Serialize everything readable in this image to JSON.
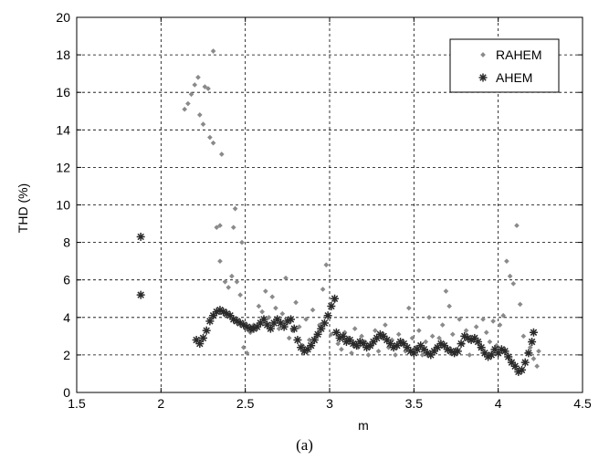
{
  "caption": "(a)",
  "chart_data": {
    "type": "scatter",
    "xlabel": "m",
    "ylabel": "THD (%)",
    "xlim": [
      1.5,
      4.5
    ],
    "ylim": [
      0,
      20
    ],
    "xticks": [
      1.5,
      2,
      2.5,
      3,
      3.5,
      4,
      4.5
    ],
    "xtick_labels": [
      "1.5",
      "2",
      "2.5",
      "3",
      "3.5",
      "4",
      "4.5"
    ],
    "yticks": [
      0,
      2,
      4,
      6,
      8,
      10,
      12,
      14,
      16,
      18,
      20
    ],
    "ytick_labels": [
      "0",
      "2",
      "4",
      "6",
      "8",
      "10",
      "12",
      "14",
      "16",
      "18",
      "20"
    ],
    "grid": true,
    "legend": "top-right",
    "series": [
      {
        "name": "RAHEM",
        "marker": "dot",
        "color": "#8a8a8a",
        "points": [
          [
            2.14,
            15.1
          ],
          [
            2.16,
            15.4
          ],
          [
            2.18,
            15.9
          ],
          [
            2.2,
            16.4
          ],
          [
            2.22,
            16.8
          ],
          [
            2.23,
            14.8
          ],
          [
            2.25,
            14.3
          ],
          [
            2.26,
            16.3
          ],
          [
            2.28,
            16.2
          ],
          [
            2.29,
            13.6
          ],
          [
            2.31,
            13.3
          ],
          [
            2.31,
            18.2
          ],
          [
            2.33,
            8.8
          ],
          [
            2.35,
            8.9
          ],
          [
            2.35,
            7.0
          ],
          [
            2.36,
            12.7
          ],
          [
            2.38,
            5.9
          ],
          [
            2.4,
            5.6
          ],
          [
            2.42,
            6.2
          ],
          [
            2.43,
            8.8
          ],
          [
            2.44,
            9.8
          ],
          [
            2.45,
            5.9
          ],
          [
            2.47,
            5.2
          ],
          [
            2.48,
            8.0
          ],
          [
            2.49,
            2.4
          ],
          [
            2.51,
            2.1
          ],
          [
            2.53,
            3.2
          ],
          [
            2.55,
            3.6
          ],
          [
            2.58,
            4.6
          ],
          [
            2.6,
            4.3
          ],
          [
            2.62,
            5.4
          ],
          [
            2.64,
            4.0
          ],
          [
            2.66,
            5.1
          ],
          [
            2.68,
            4.5
          ],
          [
            2.7,
            3.4
          ],
          [
            2.72,
            4.2
          ],
          [
            2.74,
            6.1
          ],
          [
            2.76,
            2.9
          ],
          [
            2.78,
            3.3
          ],
          [
            2.8,
            4.8
          ],
          [
            2.82,
            3.5
          ],
          [
            2.84,
            2.5
          ],
          [
            2.86,
            3.9
          ],
          [
            2.88,
            2.8
          ],
          [
            2.9,
            4.4
          ],
          [
            2.92,
            3.0
          ],
          [
            2.94,
            3.6
          ],
          [
            2.96,
            5.5
          ],
          [
            2.98,
            6.8
          ],
          [
            2.99,
            4.1
          ],
          [
            3.01,
            3.1
          ],
          [
            3.03,
            4.9
          ],
          [
            3.05,
            2.6
          ],
          [
            3.07,
            2.3
          ],
          [
            3.09,
            3.2
          ],
          [
            3.11,
            2.9
          ],
          [
            3.13,
            2.1
          ],
          [
            3.15,
            3.4
          ],
          [
            3.17,
            2.4
          ],
          [
            3.19,
            3.0
          ],
          [
            3.21,
            2.7
          ],
          [
            3.23,
            2.0
          ],
          [
            3.25,
            2.5
          ],
          [
            3.27,
            3.3
          ],
          [
            3.29,
            2.2
          ],
          [
            3.31,
            2.9
          ],
          [
            3.33,
            3.6
          ],
          [
            3.35,
            2.4
          ],
          [
            3.37,
            2.8
          ],
          [
            3.39,
            2.0
          ],
          [
            3.41,
            3.1
          ],
          [
            3.43,
            2.6
          ],
          [
            3.45,
            2.2
          ],
          [
            3.47,
            4.5
          ],
          [
            3.49,
            2.9
          ],
          [
            3.51,
            2.4
          ],
          [
            3.53,
            3.3
          ],
          [
            3.55,
            2.0
          ],
          [
            3.57,
            2.7
          ],
          [
            3.59,
            4.0
          ],
          [
            3.61,
            3.0
          ],
          [
            3.63,
            2.4
          ],
          [
            3.65,
            2.9
          ],
          [
            3.67,
            3.6
          ],
          [
            3.69,
            5.4
          ],
          [
            3.71,
            4.6
          ],
          [
            3.73,
            3.1
          ],
          [
            3.75,
            2.3
          ],
          [
            3.77,
            3.9
          ],
          [
            3.79,
            2.6
          ],
          [
            3.81,
            3.3
          ],
          [
            3.83,
            2.0
          ],
          [
            3.85,
            2.8
          ],
          [
            3.87,
            3.5
          ],
          [
            3.89,
            2.4
          ],
          [
            3.91,
            3.9
          ],
          [
            3.93,
            3.2
          ],
          [
            3.95,
            2.7
          ],
          [
            3.97,
            3.8
          ],
          [
            3.99,
            2.5
          ],
          [
            4.01,
            3.6
          ],
          [
            4.03,
            4.1
          ],
          [
            4.05,
            7.0
          ],
          [
            4.07,
            6.2
          ],
          [
            4.09,
            5.8
          ],
          [
            4.11,
            8.9
          ],
          [
            4.13,
            4.7
          ],
          [
            4.15,
            3.0
          ],
          [
            4.17,
            2.1
          ],
          [
            4.19,
            2.4
          ],
          [
            4.21,
            1.8
          ],
          [
            4.23,
            1.4
          ],
          [
            4.24,
            2.2
          ]
        ]
      },
      {
        "name": "AHEM",
        "marker": "star",
        "color": "#2a2a2a",
        "points": [
          [
            1.88,
            8.3
          ],
          [
            1.88,
            5.2
          ],
          [
            2.21,
            2.8
          ],
          [
            2.23,
            2.6
          ],
          [
            2.25,
            2.9
          ],
          [
            2.27,
            3.3
          ],
          [
            2.29,
            3.8
          ],
          [
            2.31,
            4.1
          ],
          [
            2.33,
            4.3
          ],
          [
            2.35,
            4.4
          ],
          [
            2.37,
            4.3
          ],
          [
            2.39,
            4.2
          ],
          [
            2.41,
            4.1
          ],
          [
            2.43,
            3.9
          ],
          [
            2.45,
            3.8
          ],
          [
            2.47,
            3.7
          ],
          [
            2.49,
            3.6
          ],
          [
            2.51,
            3.5
          ],
          [
            2.53,
            3.4
          ],
          [
            2.55,
            3.4
          ],
          [
            2.57,
            3.5
          ],
          [
            2.59,
            3.7
          ],
          [
            2.61,
            3.9
          ],
          [
            2.63,
            3.6
          ],
          [
            2.65,
            3.4
          ],
          [
            2.67,
            3.7
          ],
          [
            2.69,
            3.9
          ],
          [
            2.71,
            3.7
          ],
          [
            2.73,
            3.5
          ],
          [
            2.75,
            3.8
          ],
          [
            2.77,
            3.9
          ],
          [
            2.79,
            3.4
          ],
          [
            2.81,
            2.8
          ],
          [
            2.83,
            2.4
          ],
          [
            2.85,
            2.2
          ],
          [
            2.87,
            2.3
          ],
          [
            2.89,
            2.5
          ],
          [
            2.91,
            2.8
          ],
          [
            2.93,
            3.1
          ],
          [
            2.95,
            3.4
          ],
          [
            2.97,
            3.7
          ],
          [
            2.99,
            4.1
          ],
          [
            3.01,
            4.6
          ],
          [
            3.03,
            5.0
          ],
          [
            3.04,
            3.2
          ],
          [
            3.06,
            2.9
          ],
          [
            3.08,
            3.0
          ],
          [
            3.1,
            2.7
          ],
          [
            3.12,
            2.8
          ],
          [
            3.14,
            2.6
          ],
          [
            3.16,
            2.5
          ],
          [
            3.18,
            2.7
          ],
          [
            3.2,
            2.6
          ],
          [
            3.22,
            2.4
          ],
          [
            3.24,
            2.5
          ],
          [
            3.26,
            2.7
          ],
          [
            3.28,
            2.9
          ],
          [
            3.3,
            3.1
          ],
          [
            3.32,
            3.0
          ],
          [
            3.34,
            2.8
          ],
          [
            3.36,
            2.6
          ],
          [
            3.38,
            2.4
          ],
          [
            3.4,
            2.5
          ],
          [
            3.42,
            2.7
          ],
          [
            3.44,
            2.6
          ],
          [
            3.46,
            2.4
          ],
          [
            3.48,
            2.2
          ],
          [
            3.5,
            2.1
          ],
          [
            3.52,
            2.3
          ],
          [
            3.54,
            2.5
          ],
          [
            3.56,
            2.3
          ],
          [
            3.58,
            2.1
          ],
          [
            3.6,
            2.0
          ],
          [
            3.62,
            2.2
          ],
          [
            3.64,
            2.4
          ],
          [
            3.66,
            2.6
          ],
          [
            3.68,
            2.5
          ],
          [
            3.7,
            2.3
          ],
          [
            3.72,
            2.2
          ],
          [
            3.74,
            2.1
          ],
          [
            3.76,
            2.2
          ],
          [
            3.78,
            2.6
          ],
          [
            3.8,
            3.0
          ],
          [
            3.82,
            2.9
          ],
          [
            3.84,
            2.8
          ],
          [
            3.86,
            2.9
          ],
          [
            3.88,
            2.7
          ],
          [
            3.9,
            2.4
          ],
          [
            3.92,
            2.1
          ],
          [
            3.94,
            1.9
          ],
          [
            3.96,
            2.0
          ],
          [
            3.98,
            2.3
          ],
          [
            4.0,
            2.1
          ],
          [
            4.02,
            2.3
          ],
          [
            4.04,
            2.2
          ],
          [
            4.06,
            1.9
          ],
          [
            4.08,
            1.6
          ],
          [
            4.1,
            1.4
          ],
          [
            4.12,
            1.1
          ],
          [
            4.14,
            1.2
          ],
          [
            4.16,
            1.6
          ],
          [
            4.18,
            2.1
          ],
          [
            4.2,
            2.7
          ],
          [
            4.21,
            3.2
          ]
        ]
      }
    ]
  }
}
